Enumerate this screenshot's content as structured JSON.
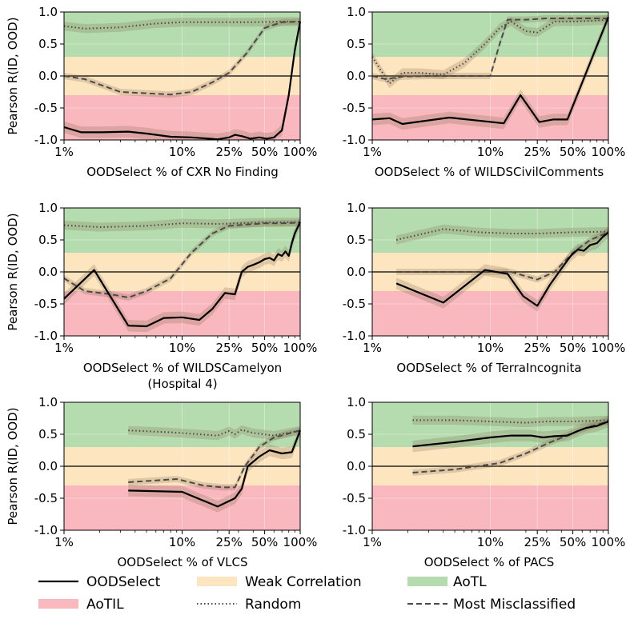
{
  "colors": {
    "aotl": "#b5dcae",
    "weak": "#fde5c0",
    "aotil": "#f8b8bd",
    "oodselect": "#000000",
    "random": "#4a4a4a",
    "misclassified": "#4a4a4a",
    "band": "#7a6040"
  },
  "legend": {
    "oodselect": "OODSelect",
    "weak": "Weak Correlation",
    "aotl": "AoTL",
    "aotil": "AoTIL",
    "random": "Random",
    "misclassified": "Most Misclassified"
  },
  "chart_data": [
    {
      "type": "line",
      "xscale": "log",
      "xlim": [
        1,
        100
      ],
      "ylim": [
        -1.0,
        1.0
      ],
      "xticks": [
        "1%",
        "10%",
        "25%",
        "50%",
        "100%"
      ],
      "yticks": [
        "1.0",
        "0.5",
        "0.0",
        "-0.5",
        "-1.0"
      ],
      "xlabel": "OODSelect % of CXR No Finding",
      "ylabel": "Pearson R(ID, OOD)",
      "regions": {
        "aotl": [
          0.3,
          1.0
        ],
        "weak": [
          -0.3,
          0.3
        ],
        "aotil": [
          -1.0,
          -0.3
        ]
      },
      "series": [
        {
          "key": "random",
          "x": [
            1,
            1.5,
            3,
            6,
            10,
            20,
            40,
            70,
            100
          ],
          "y": [
            0.78,
            0.74,
            0.76,
            0.82,
            0.84,
            0.84,
            0.84,
            0.85,
            0.85
          ]
        },
        {
          "key": "misclassified",
          "x": [
            1,
            1.5,
            3,
            8,
            12,
            18,
            25,
            35,
            50,
            70,
            100
          ],
          "y": [
            0.0,
            -0.05,
            -0.25,
            -0.29,
            -0.25,
            -0.1,
            0.05,
            0.35,
            0.75,
            0.84,
            0.85
          ]
        },
        {
          "key": "oodselect",
          "x": [
            1,
            1.4,
            2,
            3.5,
            5,
            8,
            12,
            17,
            20,
            25,
            28,
            32,
            38,
            45,
            52,
            60,
            70,
            80,
            90,
            100
          ],
          "y": [
            -0.8,
            -0.88,
            -0.88,
            -0.87,
            -0.9,
            -0.95,
            -0.96,
            -0.98,
            -0.99,
            -0.96,
            -0.92,
            -0.94,
            -0.98,
            -0.96,
            -0.98,
            -0.96,
            -0.85,
            -0.3,
            0.4,
            0.85
          ]
        }
      ]
    },
    {
      "type": "line",
      "xscale": "log",
      "xlim": [
        1,
        100
      ],
      "ylim": [
        -1.0,
        1.0
      ],
      "xticks": [
        "1%",
        "10%",
        "25%",
        "50%",
        "100%"
      ],
      "yticks": [
        "1.0",
        "0.5",
        "0.0",
        "-0.5",
        "-1.0"
      ],
      "xlabel": "OODSelect % of WILDSCivilComments",
      "ylabel": "",
      "regions": {
        "aotl": [
          0.3,
          1.0
        ],
        "weak": [
          -0.3,
          0.3
        ],
        "aotil": [
          -1.0,
          -0.3
        ]
      },
      "series": [
        {
          "key": "random",
          "x": [
            1,
            1.4,
            1.8,
            2.5,
            4,
            6,
            9,
            12,
            15,
            20,
            25,
            35,
            50,
            70,
            100
          ],
          "y": [
            0.3,
            -0.12,
            0.05,
            0.05,
            0.02,
            0.2,
            0.5,
            0.75,
            0.85,
            0.7,
            0.68,
            0.85,
            0.85,
            0.86,
            0.88
          ]
        },
        {
          "key": "misclassified",
          "x": [
            1,
            1.3,
            1.8,
            3,
            5,
            8,
            10,
            12,
            14,
            20,
            30,
            50,
            100
          ],
          "y": [
            0.0,
            -0.05,
            -0.01,
            0.0,
            0.0,
            0.0,
            0.0,
            0.5,
            0.88,
            0.88,
            0.9,
            0.9,
            0.9
          ]
        },
        {
          "key": "oodselect",
          "x": [
            1,
            1.4,
            1.8,
            4.5,
            13,
            18,
            26,
            34,
            45,
            100
          ],
          "y": [
            -0.68,
            -0.66,
            -0.75,
            -0.65,
            -0.74,
            -0.3,
            -0.72,
            -0.68,
            -0.68,
            0.92
          ]
        }
      ]
    },
    {
      "type": "line",
      "xscale": "log",
      "xlim": [
        1,
        100
      ],
      "ylim": [
        -1.0,
        1.0
      ],
      "xticks": [
        "1%",
        "10%",
        "25%",
        "50%",
        "100%"
      ],
      "yticks": [
        "1.0",
        "0.5",
        "0.0",
        "-0.5",
        "-1.0"
      ],
      "xlabel": "OODSelect % of WILDSCamelyon",
      "xlabel2": "(Hospital 4)",
      "ylabel": "Pearson R(ID, OOD)",
      "regions": {
        "aotl": [
          0.3,
          1.0
        ],
        "weak": [
          -0.3,
          0.3
        ],
        "aotil": [
          -1.0,
          -0.3
        ]
      },
      "series": [
        {
          "key": "random",
          "x": [
            1,
            2,
            5,
            10,
            20,
            40,
            100
          ],
          "y": [
            0.73,
            0.7,
            0.72,
            0.76,
            0.75,
            0.77,
            0.78
          ]
        },
        {
          "key": "misclassified",
          "x": [
            1,
            1.5,
            2.5,
            3.5,
            5,
            8,
            12,
            18,
            25,
            35,
            50,
            70,
            100
          ],
          "y": [
            -0.1,
            -0.3,
            -0.35,
            -0.4,
            -0.3,
            -0.1,
            0.3,
            0.6,
            0.72,
            0.74,
            0.76,
            0.76,
            0.77
          ]
        },
        {
          "key": "oodselect",
          "x": [
            1,
            1.8,
            3.5,
            5,
            7,
            10,
            14,
            18,
            23,
            28,
            32,
            36,
            40,
            45,
            50,
            55,
            60,
            65,
            70,
            75,
            80,
            85,
            90,
            100
          ],
          "y": [
            -0.42,
            0.03,
            -0.84,
            -0.85,
            -0.72,
            -0.71,
            -0.75,
            -0.58,
            -0.33,
            -0.35,
            0.0,
            0.08,
            0.11,
            0.15,
            0.2,
            0.22,
            0.18,
            0.28,
            0.25,
            0.32,
            0.25,
            0.45,
            0.6,
            0.78
          ]
        }
      ]
    },
    {
      "type": "line",
      "xscale": "log",
      "xlim": [
        1,
        100
      ],
      "ylim": [
        -1.0,
        1.0
      ],
      "xticks": [
        "1%",
        "10%",
        "25%",
        "50%",
        "100%"
      ],
      "yticks": [
        "1.0",
        "0.5",
        "0.0",
        "-0.5",
        "-1.0"
      ],
      "xlabel": "OODSelect % of TerraIncognita",
      "ylabel": "",
      "regions": {
        "aotl": [
          0.3,
          1.0
        ],
        "weak": [
          -0.3,
          0.3
        ],
        "aotil": [
          -1.0,
          -0.3
        ]
      },
      "series": [
        {
          "key": "random",
          "x": [
            1.6,
            4,
            8,
            15,
            25,
            50,
            100
          ],
          "y": [
            0.5,
            0.67,
            0.62,
            0.6,
            0.6,
            0.62,
            0.63
          ]
        },
        {
          "key": "misclassified",
          "x": [
            1.6,
            5,
            9,
            15,
            25,
            35,
            50,
            70,
            100
          ],
          "y": [
            0.0,
            0.0,
            0.0,
            0.0,
            -0.12,
            0.0,
            0.3,
            0.5,
            0.62
          ]
        },
        {
          "key": "oodselect",
          "x": [
            1.6,
            4,
            9,
            14,
            19,
            25,
            32,
            40,
            48,
            55,
            62,
            70,
            80,
            90,
            100
          ],
          "y": [
            -0.18,
            -0.48,
            0.03,
            -0.03,
            -0.38,
            -0.53,
            -0.2,
            0.05,
            0.25,
            0.35,
            0.33,
            0.42,
            0.45,
            0.55,
            0.62
          ]
        }
      ]
    },
    {
      "type": "line",
      "xscale": "log",
      "xlim": [
        1,
        100
      ],
      "ylim": [
        -1.0,
        1.0
      ],
      "xticks": [
        "1%",
        "10%",
        "25%",
        "50%",
        "100%"
      ],
      "yticks": [
        "1.0",
        "0.5",
        "0.0",
        "-0.5",
        "-1.0"
      ],
      "xlabel": "OODSelect % of VLCS",
      "ylabel": "Pearson R(ID, OOD)",
      "regions": {
        "aotl": [
          0.3,
          1.0
        ],
        "weak": [
          -0.3,
          0.3
        ],
        "aotil": [
          -1.0,
          -0.3
        ]
      },
      "series": [
        {
          "key": "random",
          "x": [
            3.5,
            8,
            20,
            25,
            28,
            32,
            40,
            60,
            100
          ],
          "y": [
            0.56,
            0.53,
            0.48,
            0.55,
            0.5,
            0.57,
            0.52,
            0.48,
            0.56
          ]
        },
        {
          "key": "misclassified",
          "x": [
            3.5,
            9,
            15,
            22,
            28,
            34,
            45,
            60,
            100
          ],
          "y": [
            -0.25,
            -0.2,
            -0.3,
            -0.33,
            -0.33,
            0.0,
            0.3,
            0.45,
            0.56
          ]
        },
        {
          "key": "oodselect",
          "x": [
            3.5,
            10,
            20,
            28,
            32,
            36,
            45,
            55,
            70,
            85,
            100
          ],
          "y": [
            -0.38,
            -0.4,
            -0.63,
            -0.5,
            -0.35,
            0.0,
            0.15,
            0.25,
            0.2,
            0.22,
            0.56
          ]
        }
      ]
    },
    {
      "type": "line",
      "xscale": "log",
      "xlim": [
        1,
        100
      ],
      "ylim": [
        -1.0,
        1.0
      ],
      "xticks": [
        "1%",
        "10%",
        "25%",
        "50%",
        "100%"
      ],
      "yticks": [
        "1.0",
        "0.5",
        "0.0",
        "-0.5",
        "-1.0"
      ],
      "xlabel": "OODSelect % of PACS",
      "ylabel": "",
      "regions": {
        "aotl": [
          0.3,
          1.0
        ],
        "weak": [
          -0.3,
          0.3
        ],
        "aotil": [
          -1.0,
          -0.3
        ]
      },
      "series": [
        {
          "key": "random",
          "x": [
            2.2,
            5,
            10,
            20,
            30,
            50,
            100
          ],
          "y": [
            0.72,
            0.72,
            0.7,
            0.68,
            0.7,
            0.7,
            0.72
          ]
        },
        {
          "key": "misclassified",
          "x": [
            2.2,
            5,
            12,
            20,
            30,
            50,
            70,
            100
          ],
          "y": [
            -0.1,
            -0.05,
            0.05,
            0.2,
            0.35,
            0.52,
            0.62,
            0.7
          ]
        },
        {
          "key": "oodselect",
          "x": [
            2.2,
            5,
            10,
            15,
            22,
            28,
            35,
            45,
            55,
            65,
            80,
            100
          ],
          "y": [
            0.31,
            0.38,
            0.45,
            0.48,
            0.48,
            0.45,
            0.47,
            0.48,
            0.55,
            0.6,
            0.63,
            0.7
          ]
        }
      ]
    }
  ]
}
